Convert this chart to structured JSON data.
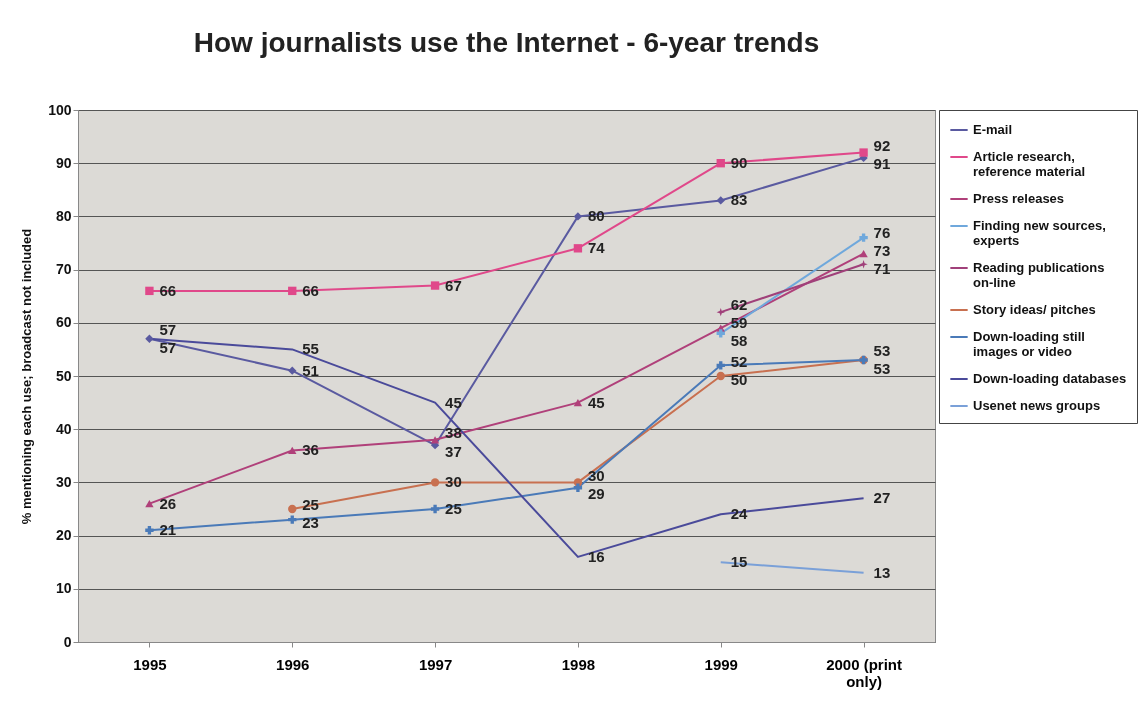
{
  "chart_data": {
    "type": "line",
    "title": "How journalists use the Internet - 6-year trends",
    "ylabel": "% mentioning each use; broadcast not included",
    "categories": [
      "1995",
      "1996",
      "1997",
      "1998",
      "1999",
      "2000 (print only)"
    ],
    "ylim": [
      0,
      100
    ],
    "yticks": [
      0,
      10,
      20,
      30,
      40,
      50,
      60,
      70,
      80,
      90,
      100
    ],
    "grid": "y",
    "legend": "right",
    "data_labels": true,
    "series": [
      {
        "name": "E-mail",
        "color": "#5a5aa0",
        "marker": "diamond",
        "values": [
          57,
          51,
          37,
          80,
          83,
          91
        ]
      },
      {
        "name": "Article research, reference material",
        "color": "#e0488a",
        "marker": "square",
        "values": [
          66,
          66,
          67,
          74,
          90,
          92
        ]
      },
      {
        "name": "Press releases",
        "color": "#b0407a",
        "marker": "triangle",
        "values": [
          26,
          36,
          38,
          45,
          59,
          73
        ]
      },
      {
        "name": "Finding new sources, experts",
        "color": "#6fa8dc",
        "marker": "cross",
        "values": [
          null,
          null,
          null,
          null,
          58,
          76
        ]
      },
      {
        "name": "Reading publications on-line",
        "color": "#a0407a",
        "marker": "star",
        "values": [
          null,
          null,
          null,
          null,
          62,
          71
        ]
      },
      {
        "name": "Story ideas/ pitches",
        "color": "#c87050",
        "marker": "circle",
        "values": [
          null,
          25,
          30,
          30,
          50,
          53
        ]
      },
      {
        "name": "Down-loading still images or video",
        "color": "#4a7ab8",
        "marker": "cross",
        "values": [
          21,
          23,
          25,
          29,
          52,
          53
        ]
      },
      {
        "name": "Down-loading databases",
        "color": "#4a4a9a",
        "marker": "none",
        "values": [
          57,
          55,
          45,
          16,
          24,
          27
        ]
      },
      {
        "name": "Usenet news groups",
        "color": "#7aa0d8",
        "marker": "none",
        "values": [
          null,
          null,
          null,
          null,
          15,
          13
        ]
      }
    ]
  }
}
